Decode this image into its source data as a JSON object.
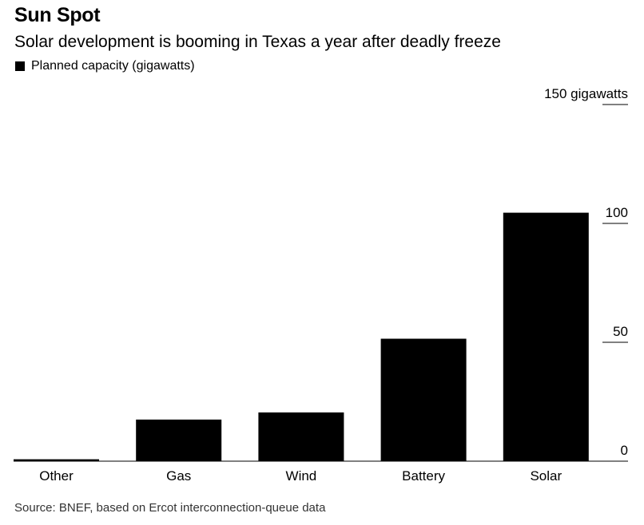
{
  "chart_data": {
    "type": "bar",
    "title": "Sun Spot",
    "subtitle": "Solar development is booming in Texas a year after deadly freeze",
    "legend": [
      {
        "name": "Planned capacity (gigawatts)",
        "color": "#000000"
      }
    ],
    "legend_position": "top-left",
    "categories": [
      "Other",
      "Gas",
      "Wind",
      "Battery",
      "Solar"
    ],
    "series": [
      {
        "name": "Planned capacity (gigawatts)",
        "values": [
          0.8,
          17.5,
          20.5,
          51.5,
          104.5
        ]
      }
    ],
    "y_axis": {
      "position": "right",
      "ylim": [
        0,
        150
      ],
      "ticks": [
        0,
        50,
        100,
        150
      ],
      "tick_labels": [
        "0",
        "50",
        "100",
        "150 gigawatts"
      ]
    },
    "xlabel": "",
    "ylabel": "",
    "grid": false,
    "bar_color": "#000000",
    "source": "Source: BNEF, based on Ercot interconnection-queue data"
  }
}
